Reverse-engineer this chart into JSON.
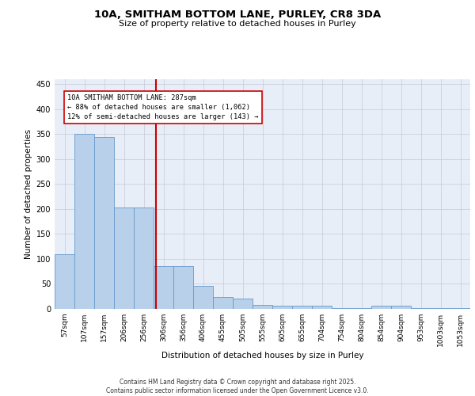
{
  "title": "10A, SMITHAM BOTTOM LANE, PURLEY, CR8 3DA",
  "subtitle": "Size of property relative to detached houses in Purley",
  "xlabel": "Distribution of detached houses by size in Purley",
  "ylabel": "Number of detached properties",
  "bar_color": "#b8d0ea",
  "bar_edge_color": "#6699cc",
  "background_color": "#e8eef8",
  "grid_color": "#c8c8d8",
  "categories": [
    "57sqm",
    "107sqm",
    "157sqm",
    "206sqm",
    "256sqm",
    "306sqm",
    "356sqm",
    "406sqm",
    "455sqm",
    "505sqm",
    "555sqm",
    "605sqm",
    "655sqm",
    "704sqm",
    "754sqm",
    "804sqm",
    "854sqm",
    "904sqm",
    "953sqm",
    "1003sqm",
    "1053sqm"
  ],
  "values": [
    110,
    350,
    344,
    203,
    203,
    86,
    86,
    46,
    24,
    20,
    8,
    6,
    6,
    6,
    2,
    1,
    6,
    6,
    2,
    1,
    2
  ],
  "ylim": [
    0,
    460
  ],
  "yticks": [
    0,
    50,
    100,
    150,
    200,
    250,
    300,
    350,
    400,
    450
  ],
  "vline_color": "#cc0000",
  "annotation_text": "10A SMITHAM BOTTOM LANE: 287sqm\n← 88% of detached houses are smaller (1,062)\n12% of semi-detached houses are larger (143) →",
  "annotation_box_color": "#ffffff",
  "annotation_box_edge": "#cc0000",
  "footer": "Contains HM Land Registry data © Crown copyright and database right 2025.\nContains public sector information licensed under the Open Government Licence v3.0."
}
